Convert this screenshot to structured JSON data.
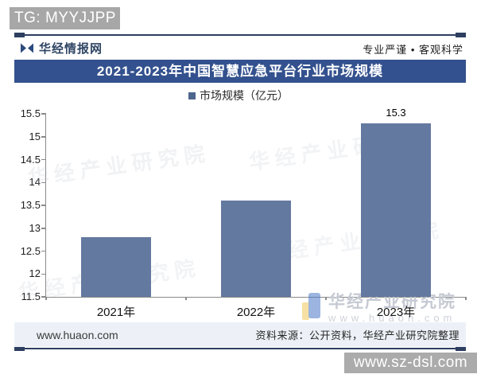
{
  "overlays": {
    "tg_badge": "TG: MYYJJPP",
    "szdsl_badge": "www.sz-dsl.com"
  },
  "header": {
    "brand": "华经情报网",
    "slogan": "专业严谨 • 客观科学"
  },
  "banner": {
    "title": "2021-2023年中国智慧应急平台行业市场规模"
  },
  "legend": {
    "label": "市场规模（亿元）"
  },
  "chart_data": {
    "type": "bar",
    "title": "2021-2023年中国智慧应急平台行业市场规模",
    "legend_entries": [
      "市场规模（亿元）"
    ],
    "legend_position": "top",
    "categories": [
      "2021年",
      "2022年",
      "2023年"
    ],
    "values": [
      12.8,
      13.6,
      15.3
    ],
    "data_labels": [
      "",
      "",
      "15.3"
    ],
    "unit": "亿元",
    "ylim": [
      11.5,
      15.5
    ],
    "ytick_step": 0.5,
    "yticks": [
      "15.5",
      "15",
      "14.5",
      "14",
      "13.5",
      "13",
      "12.5",
      "12",
      "11.5"
    ],
    "grid": false,
    "bar_color": "#64799f"
  },
  "watermarks": {
    "diagonal_text": "华经产业研究院",
    "brand_text": "华经产业研究院",
    "brand_url": "www.huaon.com"
  },
  "footer": {
    "site": "www.huaon.com",
    "source": "资料来源：公开资料，华经产业研究院整理"
  },
  "colors": {
    "bar": "#64799f",
    "banner": "#33518e",
    "line": "#2d3e5f",
    "axis": "#8a8a8a",
    "footer_bg": "#edf1f7",
    "badge_gray": "#a7a7a7",
    "badge_gray2": "#ababab"
  }
}
